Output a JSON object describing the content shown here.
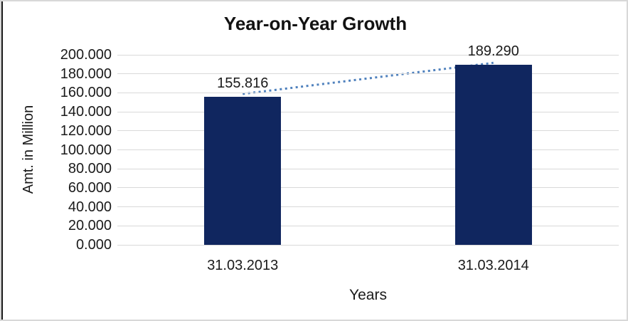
{
  "chart_data": {
    "type": "bar",
    "title": "Year-on-Year Growth",
    "xlabel": "Years",
    "ylabel": "Amt. in Million",
    "categories": [
      "31.03.2013",
      "31.03.2014"
    ],
    "values": [
      155.816,
      189.29
    ],
    "data_labels": [
      "155.816",
      "189.290"
    ],
    "y_ticks": [
      "0.000",
      "20.000",
      "40.000",
      "60.000",
      "80.000",
      "100.000",
      "120.000",
      "140.000",
      "160.000",
      "180.000",
      "200.000"
    ],
    "ylim": [
      0,
      200
    ],
    "grid": true,
    "legend": "none",
    "bar_color": "#10265f",
    "trendline": {
      "style": "dotted",
      "color": "#4f81bd"
    },
    "gridline_color": "#d9d9d9"
  }
}
